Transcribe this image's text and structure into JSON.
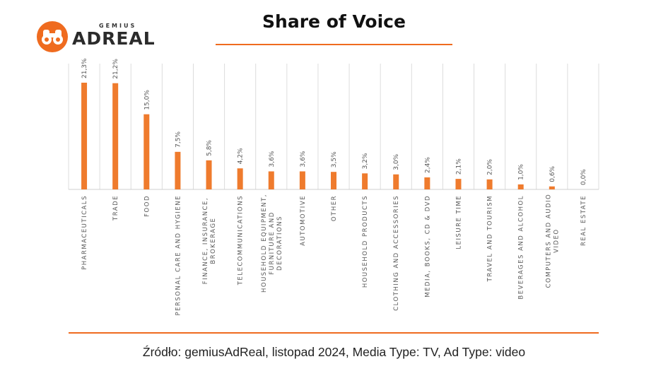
{
  "brand": {
    "top": "GEMIUS",
    "name": "ADREAL",
    "accent": "#ef6b1f"
  },
  "footer": {
    "source": "Źródło: gemiusAdReal, listopad 2024, Media Type: TV, Ad Type: video"
  },
  "chart_data": {
    "type": "bar",
    "title": "Share of Voice",
    "xlabel": "",
    "ylabel": "",
    "ylim": [
      0,
      25
    ],
    "grid": true,
    "bar_color": "#ef7b2d",
    "categories": [
      "PHARMACEUTICALS",
      "TRADE",
      "FOOD",
      "PERSONAL CARE AND HYGIENE",
      "FINANCE, INSURANCE, BROKERAGE",
      "TELECOMMUNICATIONS",
      "HOUSEHOLD EQUIPMENT, FURNITURE AND DECORATIONS",
      "AUTOMOTIVE",
      "OTHER",
      "HOUSEHOLD PRODUCTS",
      "CLOTHING AND ACCESSORIES",
      "MEDIA, BOOKS, CD & DVD",
      "LEISURE TIME",
      "TRAVEL AND TOURISM",
      "BEVERAGES AND ALCOHOL",
      "COMPUTERS AND AUDIO VIDEO",
      "REAL ESTATE"
    ],
    "category_lines": [
      [
        "PHARMACEUTICALS"
      ],
      [
        "TRADE"
      ],
      [
        "FOOD"
      ],
      [
        "PERSONAL CARE AND HYGIENE"
      ],
      [
        "FINANCE, INSURANCE,",
        "BROKERAGE"
      ],
      [
        "TELECOMMUNICATIONS"
      ],
      [
        "HOUSEHOLD EQUIPMENT,",
        "FURNITURE AND",
        "DECORATIONS"
      ],
      [
        "AUTOMOTIVE"
      ],
      [
        "OTHER"
      ],
      [
        "HOUSEHOLD PRODUCTS"
      ],
      [
        "CLOTHING AND ACCESSORIES"
      ],
      [
        "MEDIA, BOOKS, CD & DVD"
      ],
      [
        "LEISURE TIME"
      ],
      [
        "TRAVEL AND TOURISM"
      ],
      [
        "BEVERAGES AND ALCOHOL"
      ],
      [
        "COMPUTERS AND AUDIO",
        "VIDEO"
      ],
      [
        "REAL ESTATE"
      ]
    ],
    "values": [
      21.3,
      21.2,
      15.0,
      7.5,
      5.8,
      4.2,
      3.6,
      3.6,
      3.5,
      3.2,
      3.0,
      2.4,
      2.1,
      2.0,
      1.0,
      0.6,
      0.0
    ],
    "labels": [
      "21,3%",
      "21,2%",
      "15,0%",
      "7,5%",
      "5,8%",
      "4,2%",
      "3,6%",
      "3,6%",
      "3,5%",
      "3,2%",
      "3,0%",
      "2,4%",
      "2,1%",
      "2,0%",
      "1,0%",
      "0,6%",
      "0,0%"
    ]
  }
}
